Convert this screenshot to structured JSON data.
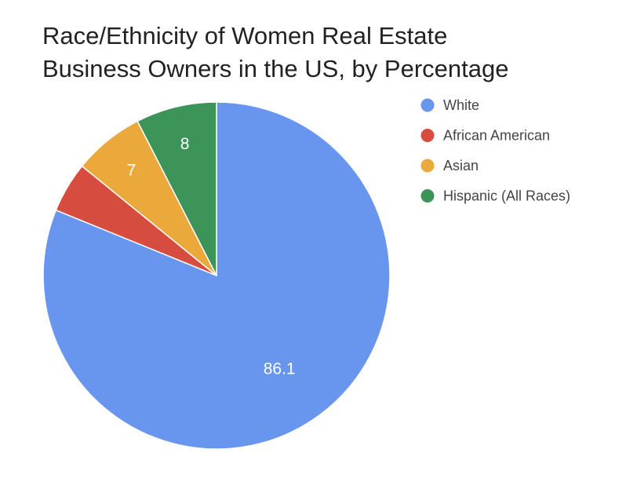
{
  "chart_data": {
    "type": "pie",
    "title": "Race/Ethnicity of Women Real Estate Business Owners in the US, by Percentage",
    "title_lines": [
      "Race/Ethnicity of Women Real Estate",
      "Business Owners in the US, by Percentage"
    ],
    "legend_position": "right",
    "slices": [
      {
        "name": "White",
        "value": 86.1,
        "label": "86.1",
        "color": "#6896EE"
      },
      {
        "name": "African American",
        "value": 5,
        "label": "",
        "color": "#D64D3F"
      },
      {
        "name": "Asian",
        "value": 7,
        "label": "7",
        "color": "#EBA93C"
      },
      {
        "name": "Hispanic (All Races)",
        "value": 8,
        "label": "8",
        "color": "#3C9458"
      }
    ]
  }
}
